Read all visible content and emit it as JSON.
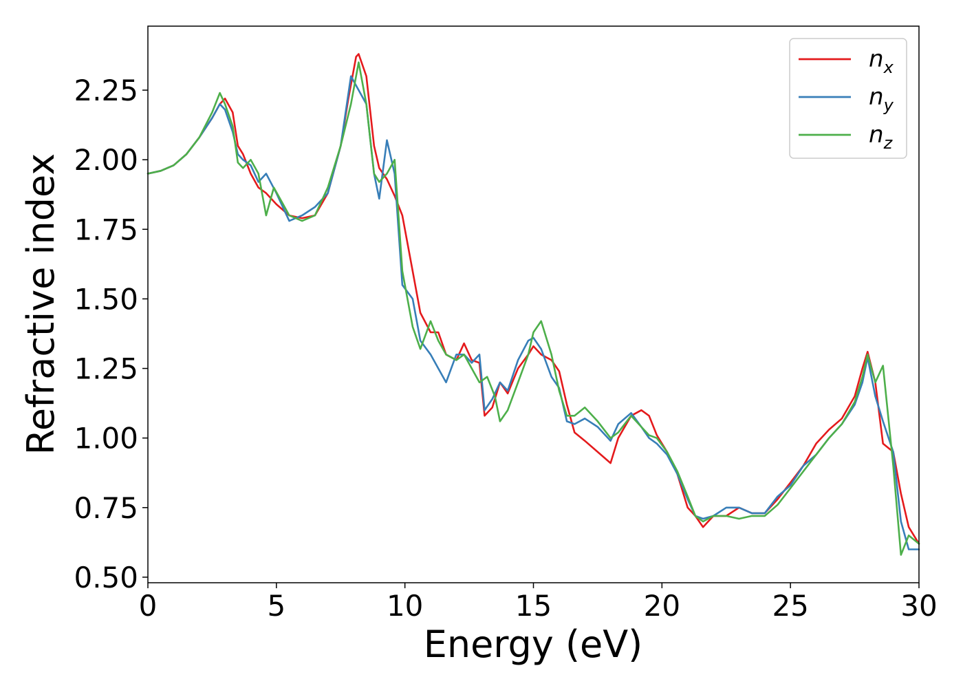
{
  "chart_data": {
    "type": "line",
    "title": "",
    "xlabel": "Energy (eV)",
    "ylabel": "Refractive index",
    "xlim": [
      0,
      30
    ],
    "ylim": [
      0.48,
      2.48
    ],
    "xticks": [
      {
        "value": 0,
        "label": "0"
      },
      {
        "value": 5,
        "label": "5"
      },
      {
        "value": 10,
        "label": "10"
      },
      {
        "value": 15,
        "label": "15"
      },
      {
        "value": 20,
        "label": "20"
      },
      {
        "value": 25,
        "label": "25"
      },
      {
        "value": 30,
        "label": "30"
      }
    ],
    "yticks": [
      {
        "value": 0.5,
        "label": "0.50"
      },
      {
        "value": 0.75,
        "label": "0.75"
      },
      {
        "value": 1.0,
        "label": "1.00"
      },
      {
        "value": 1.25,
        "label": "1.25"
      },
      {
        "value": 1.5,
        "label": "1.50"
      },
      {
        "value": 1.75,
        "label": "1.75"
      },
      {
        "value": 2.0,
        "label": "2.00"
      },
      {
        "value": 2.25,
        "label": "2.25"
      }
    ],
    "grid": false,
    "legend": {
      "placement": "top-right"
    },
    "series": [
      {
        "name": "n_x",
        "symbol": "n",
        "subscript": "x",
        "color": "#e41a1c",
        "x": [
          0,
          0.5,
          1,
          1.5,
          2,
          2.5,
          2.8,
          3.0,
          3.3,
          3.5,
          3.7,
          4.0,
          4.3,
          4.6,
          5.0,
          5.5,
          6.0,
          6.5,
          7.0,
          7.5,
          7.8,
          8.1,
          8.2,
          8.5,
          8.8,
          9.0,
          9.3,
          9.6,
          9.9,
          10.3,
          10.6,
          11.0,
          11.3,
          11.6,
          12.0,
          12.3,
          12.6,
          12.9,
          13.1,
          13.4,
          13.7,
          14.0,
          14.4,
          14.8,
          15.0,
          15.3,
          15.7,
          16.0,
          16.3,
          16.6,
          17.0,
          17.5,
          18.0,
          18.3,
          18.8,
          19.2,
          19.5,
          19.8,
          20.2,
          20.6,
          21.0,
          21.3,
          21.6,
          22.0,
          22.5,
          23.0,
          23.5,
          24.0,
          24.5,
          25.0,
          25.5,
          26.0,
          26.5,
          27.0,
          27.5,
          27.8,
          28.0,
          28.3,
          28.6,
          29.0,
          29.3,
          29.6,
          30.0
        ],
        "values": [
          1.95,
          1.96,
          1.98,
          2.02,
          2.08,
          2.15,
          2.2,
          2.22,
          2.17,
          2.05,
          2.02,
          1.95,
          1.9,
          1.88,
          1.84,
          1.8,
          1.79,
          1.8,
          1.88,
          2.05,
          2.22,
          2.37,
          2.38,
          2.3,
          2.05,
          1.97,
          1.93,
          1.87,
          1.8,
          1.6,
          1.45,
          1.38,
          1.38,
          1.3,
          1.28,
          1.34,
          1.28,
          1.27,
          1.08,
          1.11,
          1.2,
          1.16,
          1.25,
          1.3,
          1.33,
          1.3,
          1.28,
          1.24,
          1.12,
          1.02,
          0.99,
          0.95,
          0.91,
          1.0,
          1.08,
          1.1,
          1.08,
          1.01,
          0.95,
          0.87,
          0.75,
          0.72,
          0.68,
          0.72,
          0.72,
          0.75,
          0.73,
          0.73,
          0.78,
          0.84,
          0.9,
          0.98,
          1.03,
          1.07,
          1.15,
          1.25,
          1.31,
          1.2,
          0.98,
          0.95,
          0.8,
          0.68,
          0.62
        ]
      },
      {
        "name": "n_y",
        "symbol": "n",
        "subscript": "y",
        "color": "#377eb8",
        "x": [
          0,
          0.5,
          1,
          1.5,
          2,
          2.5,
          2.8,
          3.0,
          3.3,
          3.5,
          3.7,
          4.0,
          4.3,
          4.6,
          5.0,
          5.5,
          6.0,
          6.5,
          7.0,
          7.5,
          7.9,
          8.2,
          8.5,
          8.8,
          9.0,
          9.3,
          9.6,
          9.9,
          10.3,
          10.6,
          11.0,
          11.3,
          11.6,
          12.0,
          12.3,
          12.6,
          12.9,
          13.1,
          13.4,
          13.7,
          14.0,
          14.4,
          14.8,
          15.0,
          15.3,
          15.7,
          16.0,
          16.3,
          16.6,
          17.0,
          17.5,
          18.0,
          18.3,
          18.8,
          19.2,
          19.5,
          19.8,
          20.2,
          20.6,
          21.0,
          21.3,
          21.6,
          22.0,
          22.5,
          23.0,
          23.5,
          24.0,
          24.5,
          25.0,
          25.5,
          26.0,
          26.5,
          27.0,
          27.5,
          27.8,
          28.0,
          28.3,
          28.6,
          29.0,
          29.3,
          29.6,
          30.0
        ],
        "values": [
          1.95,
          1.96,
          1.98,
          2.02,
          2.08,
          2.15,
          2.2,
          2.18,
          2.1,
          2.02,
          2.0,
          1.98,
          1.92,
          1.95,
          1.88,
          1.78,
          1.8,
          1.83,
          1.88,
          2.05,
          2.3,
          2.25,
          2.2,
          1.95,
          1.86,
          2.07,
          1.95,
          1.55,
          1.5,
          1.35,
          1.3,
          1.25,
          1.2,
          1.3,
          1.3,
          1.27,
          1.3,
          1.1,
          1.14,
          1.2,
          1.17,
          1.28,
          1.35,
          1.36,
          1.32,
          1.22,
          1.18,
          1.06,
          1.05,
          1.07,
          1.04,
          0.99,
          1.05,
          1.09,
          1.04,
          1.0,
          0.98,
          0.94,
          0.87,
          0.78,
          0.72,
          0.71,
          0.72,
          0.75,
          0.75,
          0.73,
          0.73,
          0.79,
          0.83,
          0.9,
          0.94,
          1.0,
          1.05,
          1.12,
          1.2,
          1.29,
          1.15,
          1.06,
          0.95,
          0.7,
          0.6,
          0.6
        ]
      },
      {
        "name": "n_z",
        "symbol": "n",
        "subscript": "z",
        "color": "#4daf4a",
        "x": [
          0,
          0.5,
          1,
          1.5,
          2,
          2.5,
          2.8,
          3.0,
          3.3,
          3.5,
          3.7,
          4.0,
          4.3,
          4.6,
          4.9,
          5.2,
          5.5,
          6.0,
          6.5,
          7.0,
          7.5,
          7.9,
          8.2,
          8.5,
          8.8,
          9.0,
          9.3,
          9.6,
          9.9,
          10.3,
          10.6,
          11.0,
          11.3,
          11.6,
          12.0,
          12.3,
          12.6,
          12.9,
          13.2,
          13.5,
          13.7,
          14.0,
          14.4,
          14.8,
          15.0,
          15.3,
          15.7,
          16.0,
          16.3,
          16.6,
          17.0,
          17.5,
          18.0,
          18.3,
          18.8,
          19.2,
          19.5,
          19.8,
          20.2,
          20.6,
          21.0,
          21.3,
          21.6,
          22.0,
          22.5,
          23.0,
          23.5,
          24.0,
          24.5,
          25.0,
          25.5,
          26.0,
          26.5,
          27.0,
          27.5,
          27.8,
          28.0,
          28.3,
          28.6,
          29.0,
          29.3,
          29.6,
          30.0
        ],
        "values": [
          1.95,
          1.96,
          1.98,
          2.02,
          2.08,
          2.17,
          2.24,
          2.2,
          2.12,
          1.99,
          1.97,
          2.0,
          1.95,
          1.8,
          1.9,
          1.85,
          1.8,
          1.78,
          1.8,
          1.9,
          2.05,
          2.2,
          2.35,
          2.2,
          1.95,
          1.92,
          1.95,
          2.0,
          1.6,
          1.4,
          1.32,
          1.42,
          1.35,
          1.3,
          1.28,
          1.3,
          1.25,
          1.2,
          1.22,
          1.15,
          1.06,
          1.1,
          1.2,
          1.3,
          1.38,
          1.42,
          1.3,
          1.17,
          1.08,
          1.08,
          1.11,
          1.06,
          1.0,
          1.02,
          1.08,
          1.04,
          1.01,
          1.0,
          0.95,
          0.88,
          0.79,
          0.72,
          0.7,
          0.72,
          0.72,
          0.71,
          0.72,
          0.72,
          0.76,
          0.82,
          0.88,
          0.94,
          1.0,
          1.05,
          1.13,
          1.22,
          1.3,
          1.2,
          1.26,
          0.9,
          0.58,
          0.65,
          0.62
        ]
      }
    ]
  }
}
